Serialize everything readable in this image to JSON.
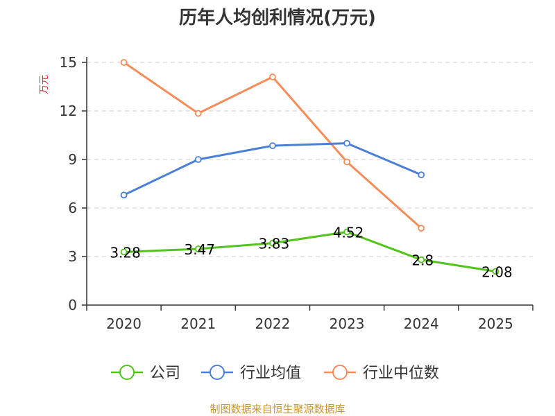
{
  "chart_data": {
    "type": "line",
    "title": "历年人均创利情况(万元)",
    "ylabel": "万元",
    "xlabel": "",
    "categories": [
      "2020",
      "2021",
      "2022",
      "2023",
      "2024",
      "2025"
    ],
    "ylim": [
      0,
      15
    ],
    "yticks": [
      0,
      3,
      6,
      9,
      12,
      15
    ],
    "grid": true,
    "legend_position": "bottom",
    "series": [
      {
        "name": "公司",
        "color": "#52c41a",
        "values": [
          3.28,
          3.47,
          3.83,
          4.52,
          2.8,
          2.08
        ],
        "labels": [
          "3.28",
          "3.47",
          "3.83",
          "4.52",
          "2.8",
          "2.08"
        ]
      },
      {
        "name": "行业均值",
        "color": "#4a7fd8",
        "values": [
          6.8,
          9.0,
          9.85,
          10.0,
          8.05,
          null
        ]
      },
      {
        "name": "行业中位数",
        "color": "#f58c5a",
        "values": [
          15.0,
          11.85,
          14.1,
          8.85,
          4.75,
          null
        ]
      }
    ],
    "source": "制图数据来自恒生聚源数据库"
  }
}
